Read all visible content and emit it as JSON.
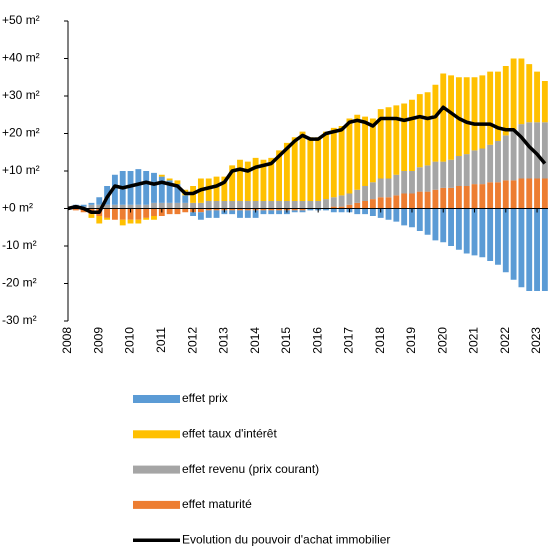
{
  "chart_data": {
    "type": "bar",
    "stacked": true,
    "x": [
      2008,
      2008.25,
      2008.5,
      2008.75,
      2009,
      2009.25,
      2009.5,
      2009.75,
      2010,
      2010.25,
      2010.5,
      2010.75,
      2011,
      2011.25,
      2011.5,
      2011.75,
      2012,
      2012.25,
      2012.5,
      2012.75,
      2013,
      2013.25,
      2013.5,
      2013.75,
      2014,
      2014.25,
      2014.5,
      2014.75,
      2015,
      2015.25,
      2015.5,
      2015.75,
      2016,
      2016.25,
      2016.5,
      2016.75,
      2017,
      2017.25,
      2017.5,
      2017.75,
      2018,
      2018.25,
      2018.5,
      2018.75,
      2019,
      2019.25,
      2019.5,
      2019.75,
      2020,
      2020.25,
      2020.5,
      2020.75,
      2021,
      2021.25,
      2021.5,
      2021.75,
      2022,
      2022.25,
      2022.5,
      2022.75,
      2023,
      2023.25
    ],
    "xlim": [
      2008,
      2023.35
    ],
    "xticks": [
      2008,
      2009,
      2010,
      2011,
      2012,
      2013,
      2014,
      2015,
      2016,
      2017,
      2018,
      2019,
      2020,
      2021,
      2022,
      2023
    ],
    "ylim": [
      -30,
      50
    ],
    "yticks": [
      {
        "value": -30,
        "label": "-30 m²"
      },
      {
        "value": -20,
        "label": "-20 m²"
      },
      {
        "value": -10,
        "label": "-10 m²"
      },
      {
        "value": 0,
        "label": "+0 m²"
      },
      {
        "value": 10,
        "label": "+10 m²"
      },
      {
        "value": 20,
        "label": "+20 m²"
      },
      {
        "value": 30,
        "label": "+30 m²"
      },
      {
        "value": 40,
        "label": "+40 m²"
      },
      {
        "value": 50,
        "label": "+50 m²"
      }
    ],
    "series": [
      {
        "name": "effet prix",
        "color": "#5b9bd5",
        "values": [
          0,
          0.5,
          0.5,
          0.5,
          2,
          5,
          8,
          9,
          9,
          9.5,
          9,
          8,
          7,
          6,
          5,
          2,
          -1,
          -2,
          -2,
          -2,
          -1,
          -1,
          -2,
          -2,
          -2,
          -1,
          -1,
          -1,
          -1,
          -0.5,
          -0.5,
          -0.5,
          -0.5,
          -0.5,
          -1,
          -1,
          -1,
          -1.5,
          -1.5,
          -2,
          -2.5,
          -3,
          -3.5,
          -4.5,
          -5,
          -6,
          -7,
          -8.5,
          -9,
          -10,
          -11,
          -12,
          -12.5,
          -13,
          -14,
          -15,
          -17,
          -19,
          -21,
          -22,
          -22,
          -22
        ]
      },
      {
        "name": "effet taux d'intérêt",
        "color": "#ffc000",
        "values": [
          0,
          0,
          0,
          -1,
          -2,
          -0.5,
          0,
          -1.5,
          -1,
          -1,
          -0.5,
          -1,
          0.5,
          0.5,
          1,
          1.5,
          4.5,
          6.5,
          6,
          6.5,
          6.5,
          9.5,
          11,
          10.5,
          11.5,
          11,
          11.5,
          13.5,
          15.5,
          17,
          18.5,
          17,
          17,
          18,
          18.5,
          18.5,
          20,
          20,
          18.5,
          17,
          18.5,
          19,
          18.5,
          18,
          19,
          19.5,
          19.5,
          20.5,
          23.5,
          22.5,
          21,
          20.5,
          19.5,
          19.5,
          19.5,
          18.5,
          18.5,
          19,
          17.5,
          15.5,
          13.5,
          11
        ]
      },
      {
        "name": "effet revenu (prix courant)",
        "color": "#a5a5a5",
        "values": [
          0,
          0.5,
          0.5,
          1,
          1,
          1,
          1,
          1,
          1,
          1,
          1,
          1.5,
          1.5,
          1.5,
          1.5,
          1.5,
          1.5,
          1.5,
          2,
          2,
          2,
          2,
          2,
          2,
          2,
          2,
          2,
          2,
          2,
          2,
          2,
          2,
          2,
          2.5,
          2.5,
          3,
          3,
          3.5,
          4,
          4.5,
          5,
          5,
          5.5,
          6,
          6,
          6.5,
          7,
          7.5,
          7,
          7.5,
          8,
          8.5,
          9,
          9.5,
          10,
          11,
          12,
          13.5,
          14.5,
          15,
          15,
          15
        ]
      },
      {
        "name": "effet maturité",
        "color": "#ed7d31",
        "values": [
          0,
          -0.5,
          -1,
          -1.5,
          -2,
          -2.5,
          -3,
          -3,
          -3,
          -3,
          -2.5,
          -2,
          -2,
          -1.5,
          -1.5,
          -1,
          -1,
          -1,
          -0.5,
          -0.5,
          -0.5,
          -0.5,
          -0.5,
          -0.5,
          -0.5,
          -0.5,
          -0.5,
          -0.5,
          -0.5,
          -0.5,
          -0.5,
          0,
          0,
          0,
          0.5,
          0.5,
          1,
          1.5,
          2,
          2.5,
          3,
          3,
          3.5,
          4,
          4,
          4.5,
          4.5,
          5,
          5.5,
          5.5,
          6,
          6,
          6.5,
          6.5,
          7,
          7,
          7.5,
          7.5,
          8,
          8,
          8,
          8
        ]
      },
      {
        "name": "Evolution du pouvoir d'achat immobilier",
        "type": "line",
        "color": "#000000",
        "values": [
          0,
          0.5,
          0,
          -1,
          -1,
          3,
          6,
          5.5,
          6,
          6.5,
          7,
          6.5,
          7,
          6.5,
          6,
          4,
          4,
          5,
          5.5,
          6,
          7,
          10,
          10.5,
          10,
          11,
          11.5,
          12,
          14,
          16,
          18,
          19.5,
          18.5,
          18.5,
          20,
          20.5,
          21,
          23,
          23.5,
          23,
          22,
          24,
          24,
          24,
          23.5,
          24,
          24.5,
          24,
          24.5,
          27,
          25.5,
          24,
          23,
          22.5,
          22.5,
          22.5,
          21.5,
          21,
          21,
          19,
          16.5,
          14.5,
          12
        ]
      }
    ]
  }
}
